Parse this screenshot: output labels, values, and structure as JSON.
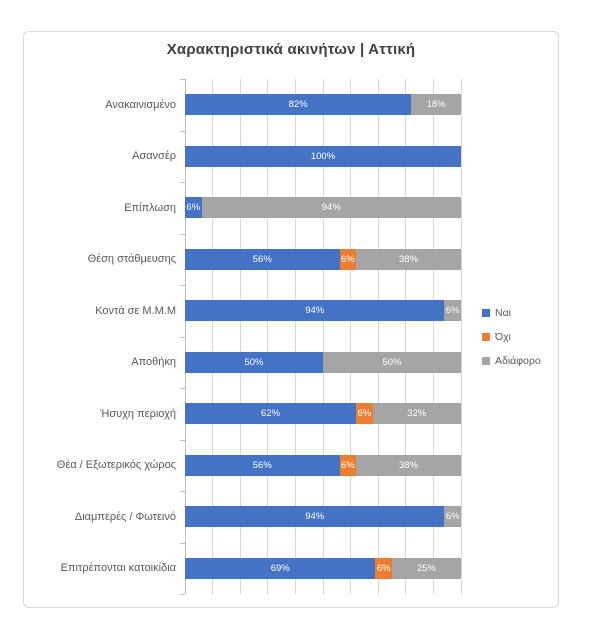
{
  "chart_data": {
    "type": "bar",
    "orientation": "horizontal",
    "stacked": true,
    "title": "Χαρακτηριστικά ακινήτων | Αττική",
    "categories": [
      "Ανακαινισμένο",
      "Ασανσέρ",
      "Επίπλωση",
      "Θέση στάθμευσης",
      "Κοντά σε Μ.Μ.Μ",
      "Αποθήκη",
      "Ήσυχη περιοχή",
      "Θέα / Εξωτερικός χώρος",
      "Διαμπερές / Φωτεινό",
      "Επιτρέπονται κατοικίδια"
    ],
    "series": [
      {
        "name": "Ναι",
        "color": "#4472C4",
        "values": [
          82,
          100,
          6,
          56,
          94,
          50,
          62,
          56,
          94,
          69
        ]
      },
      {
        "name": "Όχι",
        "color": "#ED7D31",
        "values": [
          0,
          0,
          0,
          6,
          0,
          0,
          6,
          6,
          0,
          6
        ]
      },
      {
        "name": "Αδιάφορο",
        "color": "#A5A5A5",
        "values": [
          18,
          0,
          94,
          38,
          6,
          50,
          32,
          38,
          6,
          25
        ]
      }
    ],
    "xlim": [
      0,
      100
    ],
    "x_gridline_step_percent": 10,
    "grid": "vertical",
    "axis_tick_marks": "outside",
    "data_label_format": "percent",
    "data_label_color": "#FFFFFF",
    "legend_position": "right",
    "colors": {
      "title_text": "#404040",
      "axis_text": "#595959",
      "gridline": "#D9D9D9",
      "axis_line": "#BFBFBF",
      "chart_border": "#D9D9D9"
    }
  }
}
